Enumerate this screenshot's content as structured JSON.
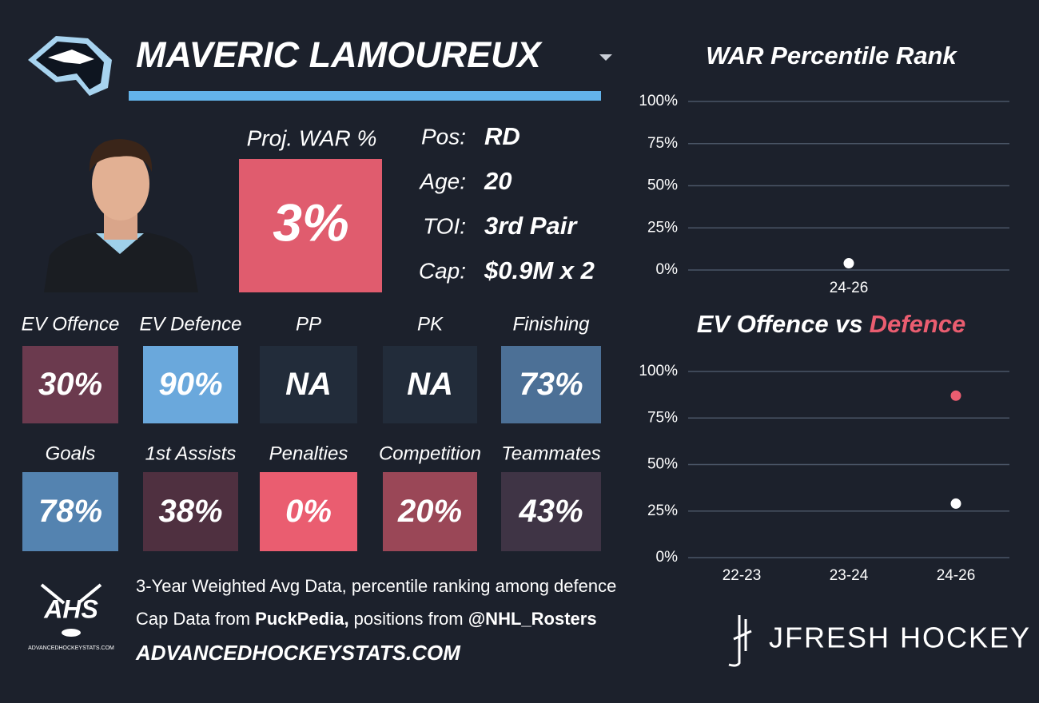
{
  "header": {
    "player_name": "MAVERIC LAMOUREUX"
  },
  "projection": {
    "label": "Proj. WAR %",
    "value": "3%",
    "color": "#e05c6e"
  },
  "info": [
    {
      "label": "Pos:",
      "value": "RD"
    },
    {
      "label": "Age:",
      "value": "20"
    },
    {
      "label": "TOI:",
      "value": "3rd Pair"
    },
    {
      "label": "Cap:",
      "value": "$0.9M x 2"
    }
  ],
  "tiles": [
    {
      "label": "EV Offence",
      "value": "30%",
      "color": "#6b3a4e"
    },
    {
      "label": "EV Defence",
      "value": "90%",
      "color": "#6aa8dc"
    },
    {
      "label": "PP",
      "value": "NA",
      "color": "#222c3a"
    },
    {
      "label": "PK",
      "value": "NA",
      "color": "#222c3a"
    },
    {
      "label": "Finishing",
      "value": "73%",
      "color": "#4c7096"
    },
    {
      "label": "Goals",
      "value": "78%",
      "color": "#5483b0"
    },
    {
      "label": "1st Assists",
      "value": "38%",
      "color": "#4f3040"
    },
    {
      "label": "Penalties",
      "value": "0%",
      "color": "#ea5d70"
    },
    {
      "label": "Competition",
      "value": "20%",
      "color": "#9a4757"
    },
    {
      "label": "Teammates",
      "value": "43%",
      "color": "#3f3445"
    }
  ],
  "footer": {
    "note": "3-Year Weighted Avg Data, percentile ranking among defence",
    "sources": [
      "Cap Data from ",
      "PuckPedia,",
      " positions from ",
      "@NHL_Rosters"
    ],
    "site": "ADVANCEDHOCKEYSTATS.COM",
    "logo_text": "AHS",
    "logo_subtext": "ADVANCEDHOCKEYSTATS.COM",
    "brand": "JFRESH HOCKEY"
  },
  "chart_data": [
    {
      "type": "scatter",
      "title": "WAR Percentile Rank",
      "categories": [
        "24-26"
      ],
      "values": [
        4
      ],
      "color": "#ffffff",
      "ylim": [
        0,
        100
      ],
      "yticks": [
        {
          "value": 0,
          "label": "0%"
        },
        {
          "value": 25,
          "label": "25%"
        },
        {
          "value": 50,
          "label": "50%"
        },
        {
          "value": 75,
          "label": "75%"
        },
        {
          "value": 100,
          "label": "100%"
        }
      ],
      "grid": true
    },
    {
      "type": "scatter",
      "title": "EV Offence vs",
      "title_highlight": "Defence",
      "title_highlight_color": "#ea5d70",
      "categories": [
        "22-23",
        "23-24",
        "24-26"
      ],
      "series": [
        {
          "color": "#ffffff",
          "values": [
            null,
            null,
            29
          ]
        },
        {
          "color": "#ea5d70",
          "values": [
            null,
            null,
            87
          ]
        }
      ],
      "ylim": [
        0,
        100
      ],
      "yticks": [
        {
          "value": 0,
          "label": "0%"
        },
        {
          "value": 25,
          "label": "25%"
        },
        {
          "value": 50,
          "label": "50%"
        },
        {
          "value": 75,
          "label": "75%"
        },
        {
          "value": 100,
          "label": "100%"
        }
      ],
      "grid": true
    }
  ]
}
